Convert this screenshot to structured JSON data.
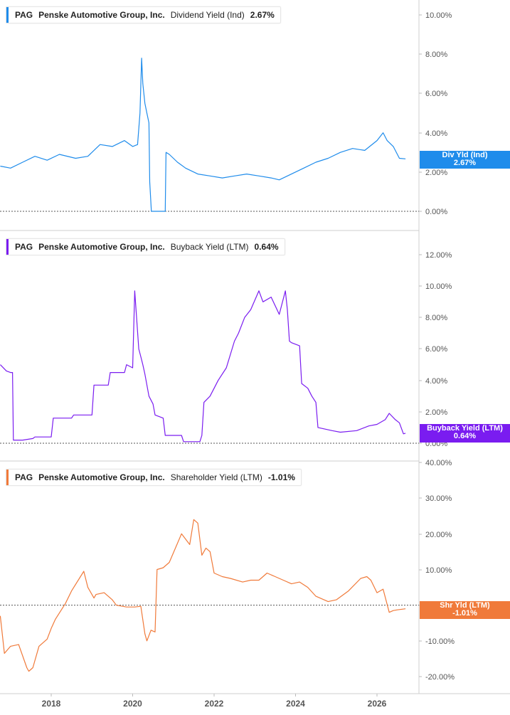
{
  "chart_data": [
    {
      "type": "line",
      "ticker": "PAG",
      "company": "Penske Automotive Group, Inc.",
      "metric": "Dividend Yield (Ind)",
      "current_value": "2.67%",
      "tag_label": "Div Yld (Ind)",
      "color": "#1f8ceb",
      "y_ticks": [
        "0.00%",
        "2.00%",
        "4.00%",
        "6.00%",
        "8.00%",
        "10.00%"
      ],
      "ylim": [
        0,
        10.5
      ],
      "zero_line": 0,
      "series": [
        {
          "x": [
            2016.75,
            2017.0,
            2017.3,
            2017.6,
            2017.9,
            2018.2,
            2018.6,
            2018.9,
            2019.2,
            2019.5,
            2019.8,
            2020.0,
            2020.12,
            2020.18,
            2020.22,
            2020.25,
            2020.3,
            2020.35,
            2020.4,
            2020.42,
            2020.46,
            2020.7,
            2020.8,
            2020.82,
            2020.9,
            2021.1,
            2021.3,
            2021.6,
            2021.9,
            2022.2,
            2022.5,
            2022.8,
            2023.1,
            2023.4,
            2023.6,
            2023.9,
            2024.2,
            2024.5,
            2024.8,
            2025.1,
            2025.4,
            2025.7,
            2026.0,
            2026.15,
            2026.25,
            2026.4,
            2026.55,
            2026.7
          ],
          "y": [
            2.3,
            2.2,
            2.5,
            2.8,
            2.6,
            2.9,
            2.7,
            2.8,
            3.4,
            3.3,
            3.6,
            3.3,
            3.4,
            5.0,
            7.8,
            6.5,
            5.5,
            5.0,
            4.5,
            1.5,
            0.0,
            0.0,
            0.0,
            3.0,
            2.9,
            2.5,
            2.2,
            1.9,
            1.8,
            1.7,
            1.8,
            1.9,
            1.8,
            1.7,
            1.6,
            1.9,
            2.2,
            2.5,
            2.7,
            3.0,
            3.2,
            3.1,
            3.6,
            4.0,
            3.6,
            3.3,
            2.7,
            2.67
          ]
        }
      ]
    },
    {
      "type": "line",
      "ticker": "PAG",
      "company": "Penske Automotive Group, Inc.",
      "metric": "Buyback Yield (LTM)",
      "current_value": "0.64%",
      "tag_label": "Buyback Yield (LTM)",
      "color": "#7a1cf0",
      "y_ticks": [
        "0.00%",
        "2.00%",
        "4.00%",
        "6.00%",
        "8.00%",
        "10.00%",
        "12.00%"
      ],
      "ylim": [
        0,
        12.7
      ],
      "zero_line": 0,
      "series": [
        {
          "x": [
            2016.75,
            2016.9,
            2017.0,
            2017.05,
            2017.07,
            2017.3,
            2017.55,
            2017.6,
            2018.0,
            2018.05,
            2018.5,
            2018.55,
            2019.0,
            2019.05,
            2019.4,
            2019.45,
            2019.8,
            2019.85,
            2020.0,
            2020.05,
            2020.15,
            2020.2,
            2020.25,
            2020.3,
            2020.4,
            2020.5,
            2020.55,
            2020.75,
            2020.8,
            2021.2,
            2021.25,
            2021.4,
            2021.65,
            2021.7,
            2021.75,
            2021.9,
            2022.1,
            2022.3,
            2022.5,
            2022.6,
            2022.75,
            2022.9,
            2023.1,
            2023.2,
            2023.4,
            2023.6,
            2023.75,
            2023.8,
            2023.85,
            2023.9,
            2024.1,
            2024.15,
            2024.3,
            2024.4,
            2024.5,
            2024.55,
            2024.9,
            2025.1,
            2025.5,
            2025.8,
            2026.0,
            2026.2,
            2026.3,
            2026.45,
            2026.55,
            2026.65,
            2026.7
          ],
          "y": [
            5.0,
            4.6,
            4.5,
            4.5,
            0.2,
            0.2,
            0.3,
            0.4,
            0.4,
            1.6,
            1.6,
            1.8,
            1.8,
            3.7,
            3.7,
            4.5,
            4.5,
            5.0,
            4.8,
            9.7,
            6.0,
            5.5,
            5.0,
            4.4,
            3.0,
            2.5,
            1.8,
            1.6,
            0.5,
            0.5,
            0.1,
            0.1,
            0.1,
            0.5,
            2.6,
            3.0,
            4.0,
            4.8,
            6.5,
            7.0,
            8.0,
            8.5,
            9.7,
            9.0,
            9.3,
            8.2,
            9.7,
            8.5,
            6.5,
            6.4,
            6.2,
            3.8,
            3.5,
            3.0,
            2.6,
            1.0,
            0.8,
            0.7,
            0.8,
            1.1,
            1.2,
            1.5,
            1.9,
            1.5,
            1.3,
            0.6,
            0.64
          ]
        }
      ]
    },
    {
      "type": "line",
      "ticker": "PAG",
      "company": "Penske Automotive Group, Inc.",
      "metric": "Shareholder Yield (LTM)",
      "current_value": "-1.01%",
      "tag_label": "Shr Yld (LTM)",
      "color": "#f07a3a",
      "y_ticks": [
        "-20.00%",
        "-10.00%",
        "0.00%",
        "10.00%",
        "20.00%",
        "30.00%",
        "40.00%"
      ],
      "ylim": [
        -24.5,
        40
      ],
      "zero_line": 0,
      "series": [
        {
          "x": [
            2016.75,
            2016.85,
            2017.0,
            2017.2,
            2017.4,
            2017.45,
            2017.55,
            2017.7,
            2017.9,
            2018.0,
            2018.1,
            2018.35,
            2018.5,
            2018.8,
            2018.9,
            2019.05,
            2019.1,
            2019.3,
            2019.5,
            2019.6,
            2019.85,
            2020.05,
            2020.2,
            2020.3,
            2020.35,
            2020.45,
            2020.55,
            2020.6,
            2020.75,
            2020.9,
            2021.2,
            2021.4,
            2021.5,
            2021.6,
            2021.7,
            2021.8,
            2021.9,
            2022.0,
            2022.2,
            2022.4,
            2022.7,
            2022.9,
            2023.1,
            2023.3,
            2023.5,
            2023.7,
            2023.9,
            2024.1,
            2024.3,
            2024.5,
            2024.8,
            2025.0,
            2025.3,
            2025.6,
            2025.75,
            2025.85,
            2026.0,
            2026.15,
            2026.3,
            2026.4,
            2026.5,
            2026.7
          ],
          "y": [
            -3.0,
            -13.5,
            -11.5,
            -11.0,
            -17.5,
            -18.5,
            -17.5,
            -11.5,
            -9.5,
            -6.5,
            -4.0,
            0.5,
            4.0,
            9.5,
            5.0,
            2.0,
            3.0,
            3.5,
            1.5,
            0.0,
            -0.5,
            -0.5,
            -0.3,
            -8.0,
            -10.0,
            -7.0,
            -7.5,
            10.0,
            10.5,
            12.0,
            20.0,
            17.0,
            24.0,
            23.0,
            14.0,
            16.0,
            15.0,
            9.0,
            8.0,
            7.5,
            6.5,
            7.0,
            7.0,
            9.0,
            8.0,
            7.0,
            6.0,
            6.5,
            5.0,
            2.5,
            1.0,
            1.5,
            4.0,
            7.5,
            8.0,
            7.0,
            3.5,
            4.5,
            -2.0,
            -1.5,
            -1.3,
            -1.01
          ]
        }
      ]
    }
  ],
  "x_axis": {
    "ticks": [
      "2018",
      "2020",
      "2022",
      "2024",
      "2026"
    ],
    "tick_values": [
      2018,
      2020,
      2022,
      2024,
      2026
    ],
    "xlim": [
      2016.75,
      2027.0
    ]
  }
}
